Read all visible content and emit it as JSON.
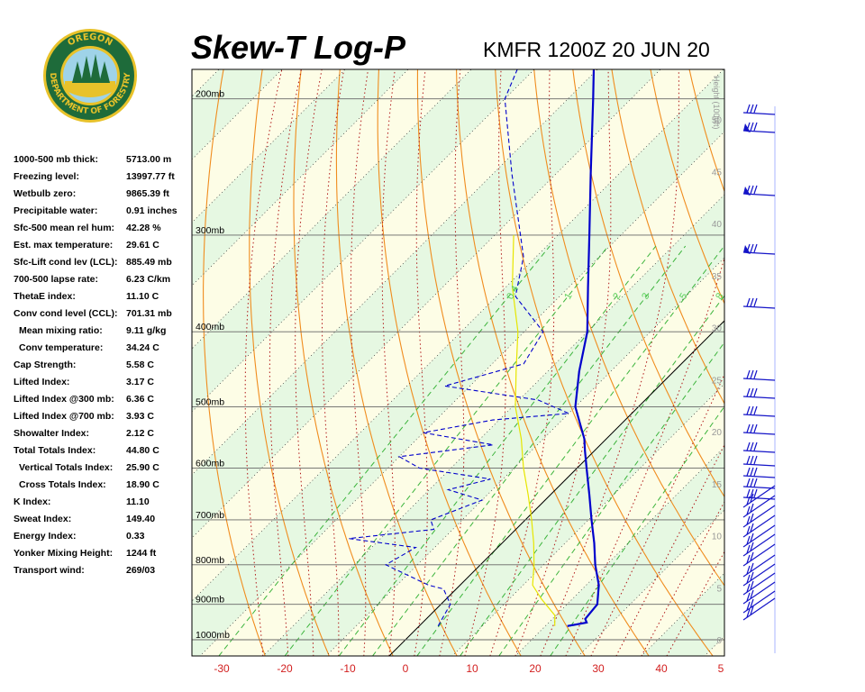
{
  "header": {
    "title": "Skew-T Log-P",
    "station": "KMFR 1200Z 20 JUN 20"
  },
  "logo": {
    "top_text": "OREGON",
    "bottom_text": "DEPARTMENT OF FORESTRY",
    "colors": {
      "ring": "#1e6b3a",
      "gold": "#e8c22a",
      "sky": "#9fd3e8",
      "tree": "#1e6b3a"
    }
  },
  "stats": [
    {
      "label": "1000-500 mb thick:",
      "value": "5713.00 m",
      "indent": false
    },
    {
      "label": "Freezing level:",
      "value": "13997.77 ft",
      "indent": false
    },
    {
      "label": "Wetbulb zero:",
      "value": "9865.39 ft",
      "indent": false
    },
    {
      "label": "Precipitable water:",
      "value": "0.91 inches",
      "indent": false
    },
    {
      "label": "Sfc-500 mean rel hum:",
      "value": "42.28 %",
      "indent": false
    },
    {
      "label": "Est. max temperature:",
      "value": "29.61 C",
      "indent": false
    },
    {
      "label": "Sfc-Lift cond lev (LCL):",
      "value": "885.49 mb",
      "indent": false
    },
    {
      "label": "700-500 lapse rate:",
      "value": "6.23 C/km",
      "indent": false
    },
    {
      "label": "ThetaE index:",
      "value": "11.10 C",
      "indent": false
    },
    {
      "label": "Conv cond level (CCL):",
      "value": "701.31 mb",
      "indent": false
    },
    {
      "label": "Mean mixing ratio:",
      "value": "9.11 g/kg",
      "indent": true
    },
    {
      "label": "Conv temperature:",
      "value": "34.24 C",
      "indent": true
    },
    {
      "label": "Cap Strength:",
      "value": "5.58 C",
      "indent": false
    },
    {
      "label": "Lifted Index:",
      "value": "3.17 C",
      "indent": false
    },
    {
      "label": "Lifted Index @300 mb:",
      "value": "6.36 C",
      "indent": false
    },
    {
      "label": "Lifted Index @700 mb:",
      "value": "3.93 C",
      "indent": false
    },
    {
      "label": "Showalter Index:",
      "value": "2.12 C",
      "indent": false
    },
    {
      "label": "Total Totals Index:",
      "value": "44.80 C",
      "indent": false
    },
    {
      "label": "Vertical Totals Index:",
      "value": "25.90 C",
      "indent": true
    },
    {
      "label": "Cross Totals Index:",
      "value": "18.90 C",
      "indent": true
    },
    {
      "label": "K Index:",
      "value": "11.10",
      "indent": false
    },
    {
      "label": "Sweat Index:",
      "value": "149.40",
      "indent": false
    },
    {
      "label": "Energy Index:",
      "value": "0.33",
      "indent": false
    },
    {
      "label": "Yonker Mixing Height:",
      "value": "1244 ft",
      "indent": false
    },
    {
      "label": "Transport wind:",
      "value": "269/03",
      "indent": false
    }
  ],
  "chart_data": {
    "type": "line",
    "title": "Skew-T Log-P",
    "subtitle": "KMFR 1200Z 20 JUN 20",
    "x_ticks": [
      "-30",
      "-20",
      "-10",
      "0",
      "10",
      "20",
      "30",
      "40",
      "5"
    ],
    "pressure_levels": [
      {
        "p": 200,
        "label": "200mb"
      },
      {
        "p": 300,
        "label": "300mb"
      },
      {
        "p": 400,
        "label": "400mb"
      },
      {
        "p": 500,
        "label": "500mb"
      },
      {
        "p": 600,
        "label": "600mb"
      },
      {
        "p": 700,
        "label": "700mb"
      },
      {
        "p": 800,
        "label": "800mb"
      },
      {
        "p": 900,
        "label": "900mb"
      },
      {
        "p": 1000,
        "label": "1000mb"
      }
    ],
    "height_axis": {
      "label": "Height (1000ft)",
      "ticks": [
        {
          "value": 0,
          "label": "0"
        },
        {
          "value": 5,
          "label": "5"
        },
        {
          "value": 10,
          "label": "10"
        },
        {
          "value": 15,
          "label": "15"
        },
        {
          "value": 20,
          "label": "20"
        },
        {
          "value": 25,
          "label": "25"
        },
        {
          "value": 30,
          "label": "30"
        },
        {
          "value": 35,
          "label": "35"
        },
        {
          "value": 40,
          "label": "40"
        },
        {
          "value": 45,
          "label": "45"
        },
        {
          "value": 50,
          "label": "50"
        }
      ]
    },
    "mixing_ratio_labels": [
      "0.4",
      "1",
      "2",
      "3",
      "5",
      "8"
    ],
    "temperature_series": {
      "color": "#0000cc",
      "points": [
        {
          "p": 960,
          "t": 23.5
        },
        {
          "p": 950,
          "t": 26.0
        },
        {
          "p": 940,
          "t": 25.2
        },
        {
          "p": 900,
          "t": 24.8
        },
        {
          "p": 850,
          "t": 22.0
        },
        {
          "p": 800,
          "t": 18.2
        },
        {
          "p": 750,
          "t": 14.6
        },
        {
          "p": 700,
          "t": 10.5
        },
        {
          "p": 650,
          "t": 6.2
        },
        {
          "p": 600,
          "t": 1.5
        },
        {
          "p": 570,
          "t": -1.5
        },
        {
          "p": 550,
          "t": -3.5
        },
        {
          "p": 500,
          "t": -10.0
        },
        {
          "p": 450,
          "t": -15.0
        },
        {
          "p": 400,
          "t": -20.0
        },
        {
          "p": 350,
          "t": -27.0
        },
        {
          "p": 300,
          "t": -35.0
        },
        {
          "p": 250,
          "t": -44.5
        },
        {
          "p": 200,
          "t": -56.0
        },
        {
          "p": 180,
          "t": -61.5
        },
        {
          "p": 160,
          "t": -50.0
        },
        {
          "p": 140,
          "t": -43.0
        }
      ]
    },
    "dewpoint_series": {
      "color": "#0000cc",
      "points": [
        {
          "p": 960,
          "t": 3.0
        },
        {
          "p": 900,
          "t": 1.5
        },
        {
          "p": 860,
          "t": -2.0
        },
        {
          "p": 850,
          "t": -5.0
        },
        {
          "p": 800,
          "t": -15.0
        },
        {
          "p": 760,
          "t": -13.0
        },
        {
          "p": 740,
          "t": -25.0
        },
        {
          "p": 720,
          "t": -13.0
        },
        {
          "p": 700,
          "t": -15.0
        },
        {
          "p": 660,
          "t": -10.0
        },
        {
          "p": 640,
          "t": -17.0
        },
        {
          "p": 620,
          "t": -12.0
        },
        {
          "p": 600,
          "t": -25.0
        },
        {
          "p": 580,
          "t": -30.0
        },
        {
          "p": 560,
          "t": -17.0
        },
        {
          "p": 540,
          "t": -30.0
        },
        {
          "p": 520,
          "t": -21.0
        },
        {
          "p": 510,
          "t": -10.0
        },
        {
          "p": 490,
          "t": -17.0
        },
        {
          "p": 470,
          "t": -34.0
        },
        {
          "p": 440,
          "t": -25.0
        },
        {
          "p": 400,
          "t": -27.0
        },
        {
          "p": 360,
          "t": -37.0
        },
        {
          "p": 320,
          "t": -42.0
        },
        {
          "p": 250,
          "t": -57.0
        },
        {
          "p": 200,
          "t": -70.0
        },
        {
          "p": 170,
          "t": -75.0
        },
        {
          "p": 140,
          "t": -80.0
        }
      ]
    },
    "parcel_series": {
      "color": "#e6e600",
      "points": [
        {
          "p": 960,
          "t": 21.5
        },
        {
          "p": 930,
          "t": 19.8
        },
        {
          "p": 885,
          "t": 15.0
        },
        {
          "p": 850,
          "t": 11.5
        },
        {
          "p": 800,
          "t": 8.5
        },
        {
          "p": 750,
          "t": 5.0
        },
        {
          "p": 700,
          "t": 1.0
        },
        {
          "p": 650,
          "t": -3.5
        },
        {
          "p": 600,
          "t": -8.5
        },
        {
          "p": 550,
          "t": -13.5
        },
        {
          "p": 500,
          "t": -19.5
        },
        {
          "p": 450,
          "t": -25.0
        },
        {
          "p": 400,
          "t": -31.0
        },
        {
          "p": 350,
          "t": -39.0
        },
        {
          "p": 300,
          "t": -47.0
        }
      ]
    },
    "wind_barbs_count": 30
  }
}
